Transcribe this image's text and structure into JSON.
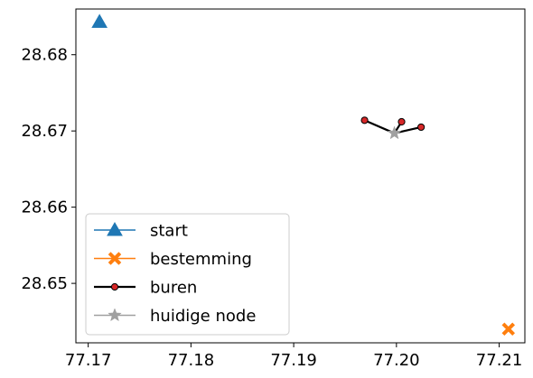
{
  "chart_data": {
    "type": "scatter",
    "xlim": [
      77.1688,
      77.2125
    ],
    "ylim": [
      28.6422,
      28.686
    ],
    "x_ticks": [
      {
        "value": 77.17,
        "label": "77.17"
      },
      {
        "value": 77.18,
        "label": "77.18"
      },
      {
        "value": 77.19,
        "label": "77.19"
      },
      {
        "value": 77.2,
        "label": "77.20"
      },
      {
        "value": 77.21,
        "label": "77.21"
      }
    ],
    "y_ticks": [
      {
        "value": 28.65,
        "label": "28.65"
      },
      {
        "value": 28.66,
        "label": "28.66"
      },
      {
        "value": 28.67,
        "label": "28.67"
      },
      {
        "value": 28.68,
        "label": "28.68"
      }
    ],
    "grid": false,
    "legend_position": "lower-left",
    "series": [
      {
        "name": "start",
        "marker": "triangle",
        "color": "#1f77b4",
        "points": [
          {
            "x": 77.1711,
            "y": 28.6843
          }
        ]
      },
      {
        "name": "bestemming",
        "marker": "x-filled",
        "color": "#ff7f0e",
        "points": [
          {
            "x": 77.2109,
            "y": 28.644
          }
        ]
      },
      {
        "name": "buren",
        "marker": "circle",
        "color": "#000000",
        "marker_fill": "#d62728",
        "center": {
          "x": 77.1998,
          "y": 28.6697
        },
        "points": [
          {
            "x": 77.1969,
            "y": 28.6714
          },
          {
            "x": 77.2005,
            "y": 28.6712
          },
          {
            "x": 77.2024,
            "y": 28.6705
          }
        ]
      },
      {
        "name": "huidige node",
        "marker": "star",
        "color": "#a0a0a0",
        "points": [
          {
            "x": 77.1998,
            "y": 28.6697
          }
        ]
      }
    ]
  }
}
